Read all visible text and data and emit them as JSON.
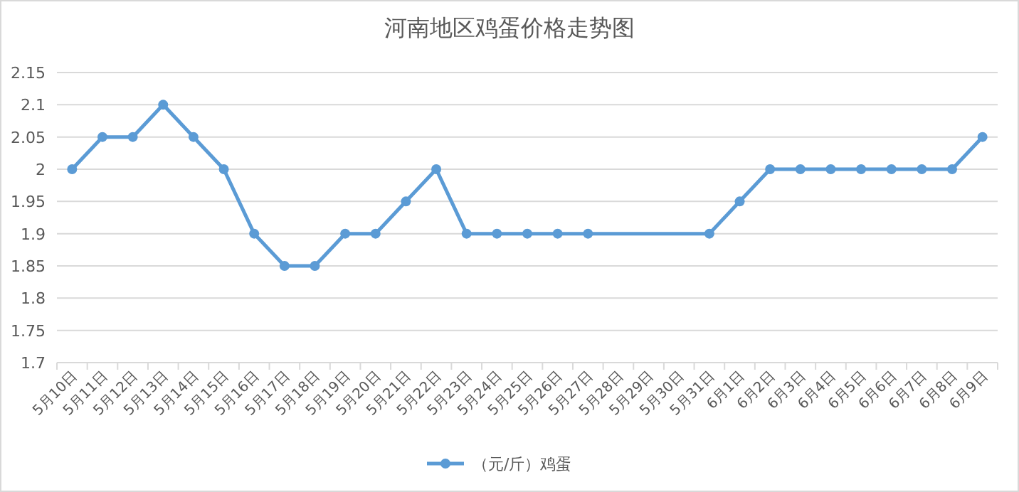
{
  "chart_data": {
    "type": "line",
    "title": "河南地区鸡蛋价格走势图",
    "categories": [
      "5月10日",
      "5月11日",
      "5月12日",
      "5月13日",
      "5月14日",
      "5月15日",
      "5月16日",
      "5月17日",
      "5月18日",
      "5月19日",
      "5月20日",
      "5月21日",
      "5月22日",
      "5月23日",
      "5月24日",
      "5月25日",
      "5月26日",
      "5月27日",
      "5月28日",
      "5月29日",
      "5月30日",
      "5月31日",
      "6月1日",
      "6月2日",
      "6月3日",
      "6月4日",
      "6月5日",
      "6月6日",
      "6月7日",
      "6月8日",
      "6月9日"
    ],
    "series": [
      {
        "name": "（元/斤）鸡蛋",
        "color": "#5b9bd5",
        "values": [
          2,
          2.05,
          2.05,
          2.1,
          2.05,
          2,
          1.9,
          1.85,
          1.85,
          1.9,
          1.9,
          1.95,
          2,
          1.9,
          1.9,
          1.9,
          1.9,
          1.9,
          null,
          null,
          null,
          1.9,
          1.95,
          2,
          2,
          2,
          2,
          2,
          2,
          2,
          2.05
        ]
      }
    ],
    "ylim": [
      1.7,
      2.15
    ],
    "yticks": [
      1.7,
      1.75,
      1.8,
      1.85,
      1.9,
      1.95,
      2,
      2.05,
      2.1,
      2.15
    ],
    "grid": "y",
    "legend": "bottom",
    "marker": "circle",
    "line_style": "solid"
  }
}
